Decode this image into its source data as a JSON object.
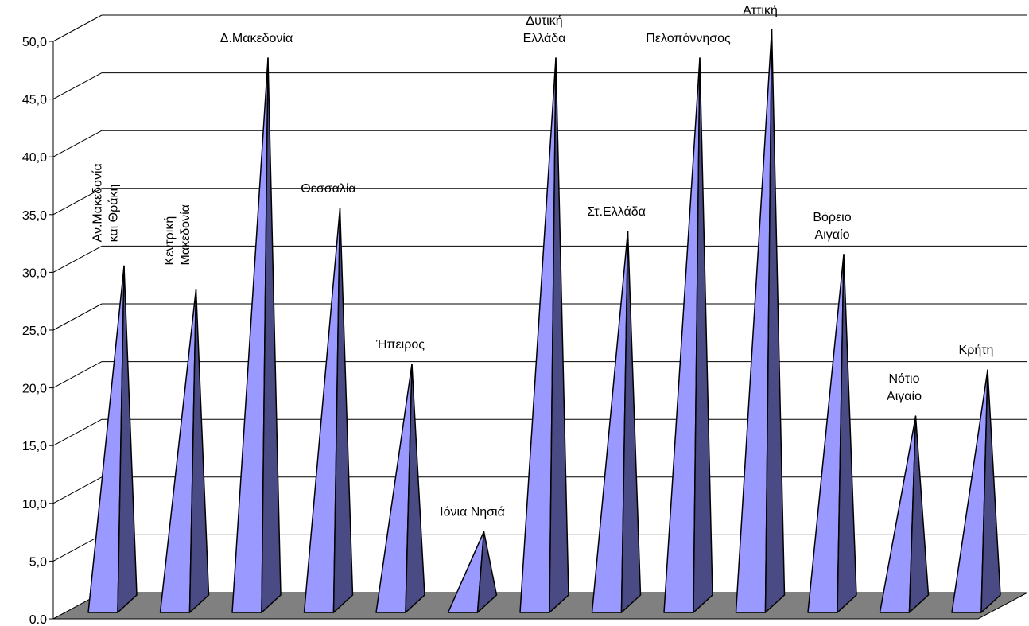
{
  "chart_data": {
    "type": "bar",
    "bar_shape": "pyramid",
    "three_d": true,
    "categories": [
      "Αν.Μακεδονία και Θράκη",
      "Κεντρική Μακεδονία",
      "Δ.Μακεδονία",
      "Θεσσαλία",
      "Ήπειρος",
      "Ιόνια Νησιά",
      "Δυτική Ελλάδα",
      "Στ.Ελλάδα",
      "Πελοπόννησος",
      "Αττική",
      "Βόρειο Αιγαίο",
      "Νότιο Αιγαίο",
      "Κρήτη"
    ],
    "label_lines": [
      [
        "Αν.Μακεδονία",
        "και Θράκη"
      ],
      [
        "Κεντρική",
        "Μακεδονία"
      ],
      [
        "Δ.Μακεδονία"
      ],
      [
        "Θεσσαλία"
      ],
      [
        "Ήπειρος"
      ],
      [
        "Ιόνια Νησιά"
      ],
      [
        "Δυτική",
        "Ελλάδα"
      ],
      [
        "Στ.Ελλάδα"
      ],
      [
        "Πελοπόννησος"
      ],
      [
        "Αττική"
      ],
      [
        "Βόρειο",
        "Αιγαίο"
      ],
      [
        "Νότιο",
        "Αιγαίο"
      ],
      [
        "Κρήτη"
      ]
    ],
    "label_rotated": [
      true,
      true,
      false,
      false,
      false,
      false,
      false,
      false,
      false,
      false,
      false,
      false,
      false
    ],
    "values": [
      30.0,
      28.0,
      48.0,
      35.0,
      21.5,
      7.0,
      48.0,
      33.0,
      48.0,
      50.5,
      31.0,
      17.0,
      21.0
    ],
    "ylim": [
      0,
      50
    ],
    "yticks": [
      "0.0",
      "5,0",
      "10,0",
      "15,0",
      "20,0",
      "25,0",
      "30,0",
      "35,0",
      "40,0",
      "45,0",
      "50,0"
    ],
    "grid": true,
    "legend": false,
    "colors": {
      "front_face": "#9999ff",
      "side_face": "#4a4a84",
      "floor": "#808080",
      "gridline": "#000000",
      "outline": "#000000"
    }
  }
}
